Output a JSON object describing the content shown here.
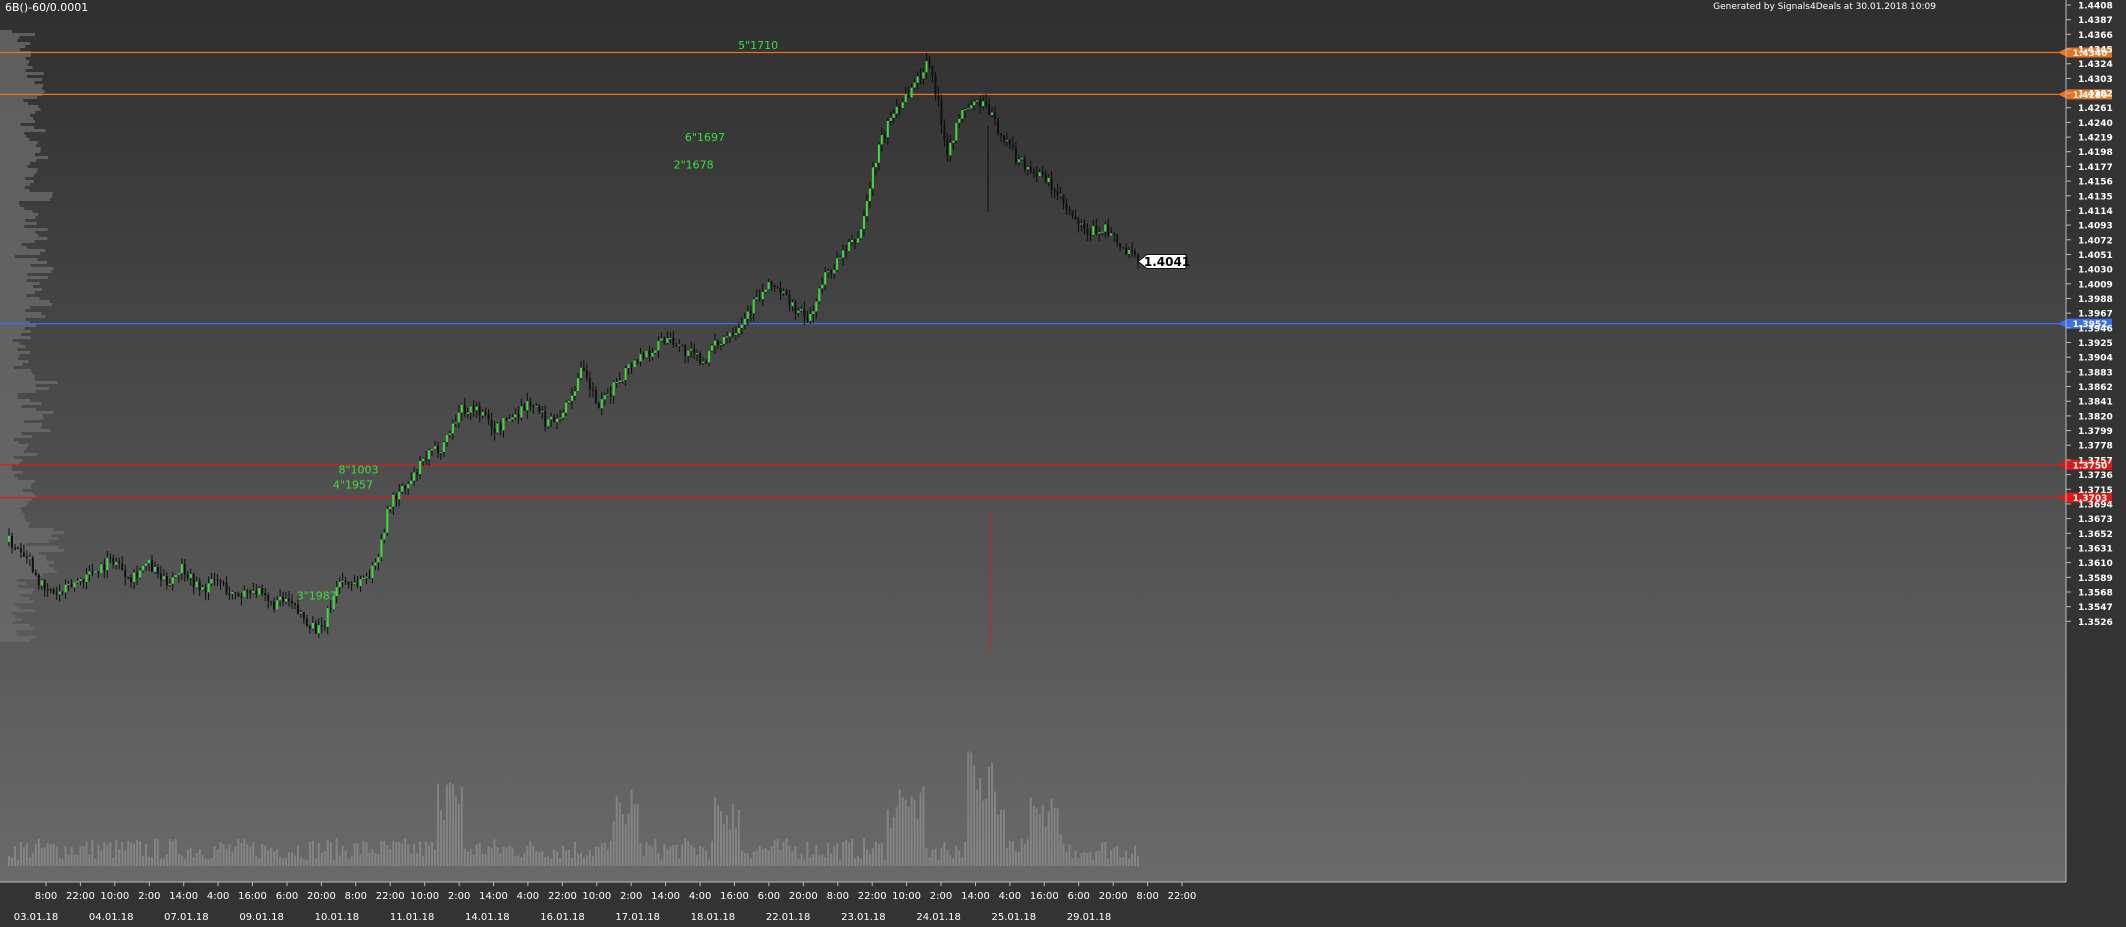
{
  "header": {
    "symbol": "6B()-60/0.0001",
    "generated": "Generated by Signals4Deals at 30.01.2018 10:09"
  },
  "chart_data": {
    "type": "candlestick",
    "timeframe": "60 min",
    "ylim": [
      1.3505,
      1.4408
    ],
    "y_ticks": [
      "1.4408",
      "1.4387",
      "1.4366",
      "1.4345",
      "1.4324",
      "1.4303",
      "1.4282",
      "1.4261",
      "1.4240",
      "1.4219",
      "1.4198",
      "1.4177",
      "1.4156",
      "1.4135",
      "1.4114",
      "1.4093",
      "1.4072",
      "1.4051",
      "1.4030",
      "1.4009",
      "1.3988",
      "1.3967",
      "1.3946",
      "1.3925",
      "1.3904",
      "1.3883",
      "1.3862",
      "1.3841",
      "1.3820",
      "1.3799",
      "1.3778",
      "1.3757",
      "1.3736",
      "1.3715",
      "1.3694",
      "1.3673",
      "1.3652",
      "1.3631",
      "1.3610",
      "1.3589",
      "1.3568",
      "1.3547",
      "1.3526"
    ],
    "x_time_ticks": [
      "8:00",
      "22:00",
      "10:00",
      "2:00",
      "14:00",
      "4:00",
      "16:00",
      "6:00",
      "20:00",
      "8:00",
      "22:00",
      "10:00",
      "2:00",
      "14:00",
      "4:00",
      "22:00",
      "10:00",
      "2:00",
      "14:00",
      "4:00",
      "16:00",
      "6:00",
      "20:00",
      "8:00",
      "22:00",
      "10:00",
      "2:00",
      "14:00",
      "4:00",
      "16:00",
      "6:00",
      "20:00",
      "8:00",
      "22:00"
    ],
    "x_date_ticks": [
      "03.01.18",
      "04.01.18",
      "07.01.18",
      "09.01.18",
      "10.01.18",
      "11.01.18",
      "14.01.18",
      "16.01.18",
      "17.01.18",
      "18.01.18",
      "22.01.18",
      "23.01.18",
      "24.01.18",
      "25.01.18",
      "29.01.18"
    ],
    "price_path": [
      1.364,
      1.3625,
      1.357,
      1.3565,
      1.3585,
      1.36,
      1.3615,
      1.359,
      1.3608,
      1.358,
      1.3605,
      1.357,
      1.3585,
      1.356,
      1.3575,
      1.355,
      1.3555,
      1.353,
      1.351,
      1.3585,
      1.358,
      1.36,
      1.37,
      1.372,
      1.376,
      1.378,
      1.383,
      1.383,
      1.38,
      1.382,
      1.384,
      1.381,
      1.383,
      1.3885,
      1.383,
      1.387,
      1.39,
      1.3915,
      1.3935,
      1.391,
      1.39,
      1.393,
      1.395,
      1.3985,
      1.401,
      1.398,
      1.3955,
      1.402,
      1.405,
      1.408,
      1.42,
      1.426,
      1.429,
      1.433,
      1.42,
      1.426,
      1.427,
      1.423,
      1.419,
      1.417,
      1.415,
      1.411,
      1.408,
      1.409,
      1.406,
      1.4041
    ],
    "last_price": "1.4041",
    "horizontal_levels": [
      {
        "price": 1.434,
        "label": "1.4340",
        "color": "#e8731e"
      },
      {
        "price": 1.428,
        "label": "1.4280",
        "color": "#e8731e"
      },
      {
        "price": 1.3952,
        "label": "1.3952",
        "color": "#3a6fe8"
      },
      {
        "price": 1.375,
        "label": "1.3750",
        "color": "#e01818"
      },
      {
        "price": 1.3703,
        "label": "1.3703",
        "color": "#e01818"
      }
    ],
    "annotations": [
      {
        "text": "5\"1710",
        "price": 1.4351,
        "pos": 0.645
      },
      {
        "text": "6\"1697",
        "price": 1.4219,
        "pos": 0.598
      },
      {
        "text": "2\"1678",
        "price": 1.418,
        "pos": 0.588
      },
      {
        "text": "8\"1003",
        "price": 1.3743,
        "pos": 0.292
      },
      {
        "text": "4\"1957",
        "price": 1.3722,
        "pos": 0.287
      },
      {
        "text": "3\"1987",
        "price": 1.3563,
        "pos": 0.255
      }
    ],
    "colors": {
      "up": "#3ddc3d",
      "down": "#101010",
      "annotation": "#3ddc3d",
      "axis_text": "#ffffff",
      "volume": "#9a9a9a",
      "profile": "#6a6a6a"
    }
  }
}
